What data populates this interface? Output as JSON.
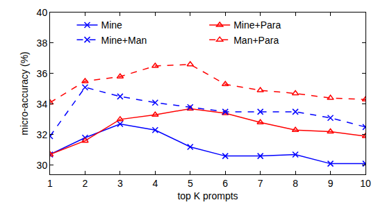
{
  "chart_data": {
    "type": "line",
    "x_label": "top K prompts",
    "y_label": "micro-accuracy (%)",
    "x": [
      1,
      2,
      3,
      4,
      5,
      6,
      7,
      8,
      9,
      10
    ],
    "xlim": [
      1,
      10
    ],
    "xticks": [
      1,
      2,
      3,
      4,
      5,
      6,
      7,
      8,
      9,
      10
    ],
    "ylim": [
      29.4,
      40
    ],
    "yticks": [
      30,
      32,
      34,
      36,
      38,
      40
    ],
    "grid": false,
    "legend": "upper center",
    "series": [
      {
        "name": "Mine",
        "color": "#0000ff",
        "marker": "x",
        "line_style": "solid",
        "values": [
          30.7,
          31.8,
          32.7,
          32.3,
          31.2,
          30.6,
          30.6,
          30.7,
          30.1,
          30.1
        ]
      },
      {
        "name": "Mine+Para",
        "color": "#ff0000",
        "marker": "triangle",
        "line_style": "solid",
        "values": [
          30.7,
          31.6,
          33.0,
          33.3,
          33.7,
          33.4,
          32.8,
          32.3,
          32.2,
          31.9
        ]
      },
      {
        "name": "Mine+Man",
        "color": "#0000ff",
        "marker": "x",
        "line_style": "dash",
        "values": [
          31.9,
          35.1,
          34.5,
          34.1,
          33.8,
          33.5,
          33.5,
          33.5,
          33.1,
          32.5
        ]
      },
      {
        "name": "Man+Para",
        "color": "#ff0000",
        "marker": "triangle",
        "line_style": "dash",
        "values": [
          34.1,
          35.5,
          35.8,
          36.5,
          36.6,
          35.3,
          34.9,
          34.7,
          34.4,
          34.3
        ]
      }
    ]
  }
}
